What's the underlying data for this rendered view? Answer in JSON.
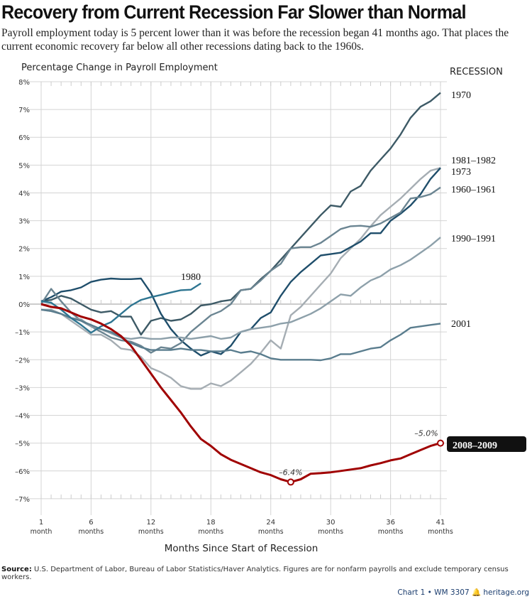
{
  "header": {
    "title": "Recovery from Current Recession Far Slower than Normal",
    "subtitle": "Payroll employment today is 5 percent lower than it was before the recession began 41 months ago. That places the current economic recovery far below all other recessions dating back to the 1960s."
  },
  "legend_title": "RECESSION",
  "source_label": "Source:",
  "source_text": "U.S. Department of Labor, Bureau of Labor Statistics/Haver Analytics. Figures are for nonfarm payrolls and exclude temporary census workers.",
  "footer": {
    "chart": "Chart 1 • WM 3307",
    "site": "heritage.org"
  },
  "chart_data": {
    "type": "line",
    "title": "Recovery from Current Recession Far Slower than Normal",
    "ylabel": "Percentage Change in Payroll Employment",
    "xlabel": "Months Since Start of Recession",
    "ylim": [
      -7,
      8
    ],
    "xlim": [
      1,
      41
    ],
    "grid": true,
    "yticks": [
      "8%",
      "7%",
      "6%",
      "5%",
      "4%",
      "3%",
      "2%",
      "1%",
      "0%",
      "–1%",
      "–2%",
      "–3%",
      "–4%",
      "–5%",
      "–6%",
      "–7%"
    ],
    "xticks": [
      {
        "v": 1,
        "n": "1",
        "u": "month"
      },
      {
        "v": 6,
        "n": "6",
        "u": "months"
      },
      {
        "v": 12,
        "n": "12",
        "u": "months"
      },
      {
        "v": 18,
        "n": "18",
        "u": "months"
      },
      {
        "v": 24,
        "n": "24",
        "u": "months"
      },
      {
        "v": 30,
        "n": "30",
        "u": "months"
      },
      {
        "v": 36,
        "n": "36",
        "u": "months"
      },
      {
        "v": 41,
        "n": "41",
        "u": "months"
      }
    ],
    "series": [
      {
        "name": "1970",
        "color": "#3d5a66",
        "values": [
          0.1,
          0.15,
          0.3,
          0.2,
          0.0,
          -0.2,
          -0.3,
          -0.25,
          -0.45,
          -0.45,
          -1.1,
          -0.6,
          -0.5,
          -0.6,
          -0.55,
          -0.35,
          -0.05,
          0.0,
          0.1,
          0.15,
          0.5,
          0.55,
          0.9,
          1.2,
          1.6,
          2.0,
          2.4,
          2.8,
          3.2,
          3.55,
          3.5,
          4.05,
          4.25,
          4.8,
          5.2,
          5.6,
          6.1,
          6.7,
          7.1,
          7.3,
          7.6
        ]
      },
      {
        "name": "1981–1982",
        "color": "#a5adb3",
        "values": [
          -0.2,
          -0.25,
          -0.35,
          -0.6,
          -0.85,
          -1.1,
          -1.1,
          -1.3,
          -1.6,
          -1.65,
          -1.9,
          -2.3,
          -2.45,
          -2.65,
          -2.95,
          -3.05,
          -3.05,
          -2.85,
          -2.95,
          -2.75,
          -2.45,
          -2.15,
          -1.75,
          -1.3,
          -1.6,
          -0.4,
          -0.1,
          0.3,
          0.7,
          1.1,
          1.65,
          2.0,
          2.35,
          2.8,
          3.2,
          3.5,
          3.8,
          4.15,
          4.5,
          4.8,
          4.9
        ]
      },
      {
        "name": "1973",
        "color": "#1f4e6b",
        "values": [
          0.1,
          0.25,
          0.45,
          0.5,
          0.6,
          0.8,
          0.88,
          0.92,
          0.9,
          0.9,
          0.92,
          0.4,
          -0.35,
          -0.9,
          -1.3,
          -1.6,
          -1.85,
          -1.7,
          -1.8,
          -1.5,
          -1.0,
          -0.9,
          -0.5,
          -0.3,
          0.3,
          0.8,
          1.15,
          1.45,
          1.75,
          1.8,
          1.85,
          2.05,
          2.25,
          2.55,
          2.55,
          3.0,
          3.25,
          3.55,
          3.95,
          4.5,
          4.9
        ]
      },
      {
        "name": "1960–1961",
        "color": "#6b8592",
        "values": [
          0.0,
          0.55,
          0.1,
          -0.3,
          -0.6,
          -0.8,
          -1.0,
          -1.2,
          -1.3,
          -1.35,
          -1.5,
          -1.75,
          -1.55,
          -1.6,
          -1.4,
          -1.0,
          -0.7,
          -0.4,
          -0.25,
          0.0,
          0.5,
          0.55,
          0.85,
          1.2,
          1.45,
          2.0,
          2.05,
          2.05,
          2.2,
          2.45,
          2.7,
          2.8,
          2.82,
          2.78,
          2.9,
          3.1,
          3.3,
          3.8,
          3.85,
          3.95,
          4.2
        ]
      },
      {
        "name": "1990–1991",
        "color": "#8da0aa",
        "values": [
          -0.2,
          -0.2,
          -0.35,
          -0.5,
          -0.55,
          -0.8,
          -0.9,
          -1.05,
          -1.2,
          -1.25,
          -1.2,
          -1.25,
          -1.25,
          -1.2,
          -1.2,
          -1.25,
          -1.2,
          -1.15,
          -1.25,
          -1.2,
          -1.0,
          -0.9,
          -0.85,
          -0.8,
          -0.7,
          -0.65,
          -0.5,
          -0.35,
          -0.15,
          0.1,
          0.35,
          0.3,
          0.6,
          0.85,
          1.0,
          1.25,
          1.4,
          1.6,
          1.85,
          2.1,
          2.4
        ]
      },
      {
        "name": "2001",
        "color": "#5a7d8e",
        "values": [
          -0.2,
          -0.25,
          -0.35,
          -0.5,
          -0.6,
          -0.75,
          -0.9,
          -1.0,
          -1.2,
          -1.4,
          -1.55,
          -1.65,
          -1.65,
          -1.65,
          -1.6,
          -1.65,
          -1.65,
          -1.7,
          -1.7,
          -1.65,
          -1.75,
          -1.7,
          -1.8,
          -1.95,
          -2.0,
          -2.0,
          -2.0,
          -2.0,
          -2.02,
          -1.95,
          -1.8,
          -1.8,
          -1.7,
          -1.6,
          -1.55,
          -1.3,
          -1.1,
          -0.85,
          -0.8,
          -0.75,
          -0.7
        ]
      },
      {
        "name": "1980",
        "color": "#2e7591",
        "values": [
          0.1,
          0.05,
          -0.2,
          -0.5,
          -0.75,
          -1.03,
          -0.8,
          -0.65,
          -0.35,
          -0.05,
          0.15,
          0.25,
          0.33,
          0.42,
          0.5,
          0.52,
          0.75
        ]
      },
      {
        "name": "2008–2009",
        "color": "#a00000",
        "values": [
          0,
          -0.1,
          -0.15,
          -0.3,
          -0.45,
          -0.55,
          -0.7,
          -0.9,
          -1.15,
          -1.5,
          -2.0,
          -2.5,
          -3.0,
          -3.45,
          -3.9,
          -4.4,
          -4.85,
          -5.1,
          -5.4,
          -5.6,
          -5.75,
          -5.9,
          -6.05,
          -6.15,
          -6.3,
          -6.4,
          -6.3,
          -6.1,
          -6.08,
          -6.05,
          -6.0,
          -5.95,
          -5.9,
          -5.8,
          -5.72,
          -5.62,
          -5.55,
          -5.4,
          -5.25,
          -5.1,
          -5.0
        ]
      }
    ],
    "annotations": [
      {
        "month": 26,
        "value": -6.4,
        "text": "–6.4%"
      },
      {
        "month": 41,
        "value": -5.0,
        "text": "–5.0%"
      }
    ]
  }
}
